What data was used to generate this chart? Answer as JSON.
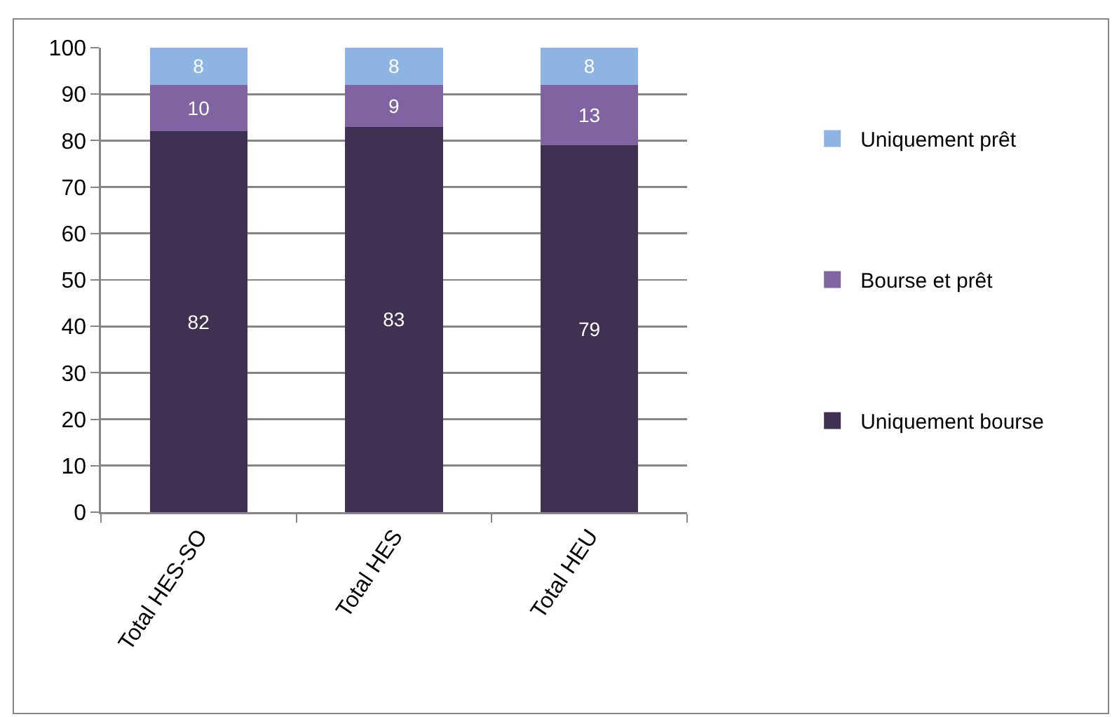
{
  "chart_data": {
    "type": "bar",
    "stacked": true,
    "categories": [
      "Total HES-SO",
      "Total HES",
      "Total HEU"
    ],
    "series": [
      {
        "name": "Uniquement bourse",
        "color": "#403152",
        "values": [
          82,
          83,
          79
        ]
      },
      {
        "name": "Bourse et prêt",
        "color": "#8064a2",
        "values": [
          10,
          9,
          13
        ]
      },
      {
        "name": "Uniquement prêt",
        "color": "#8db4e2",
        "values": [
          8,
          8,
          8
        ]
      }
    ],
    "ylim": [
      0,
      100
    ],
    "yticks": [
      0,
      10,
      20,
      30,
      40,
      50,
      60,
      70,
      80,
      90,
      100
    ],
    "grid": "y",
    "legend": "right",
    "data_labels": true
  }
}
